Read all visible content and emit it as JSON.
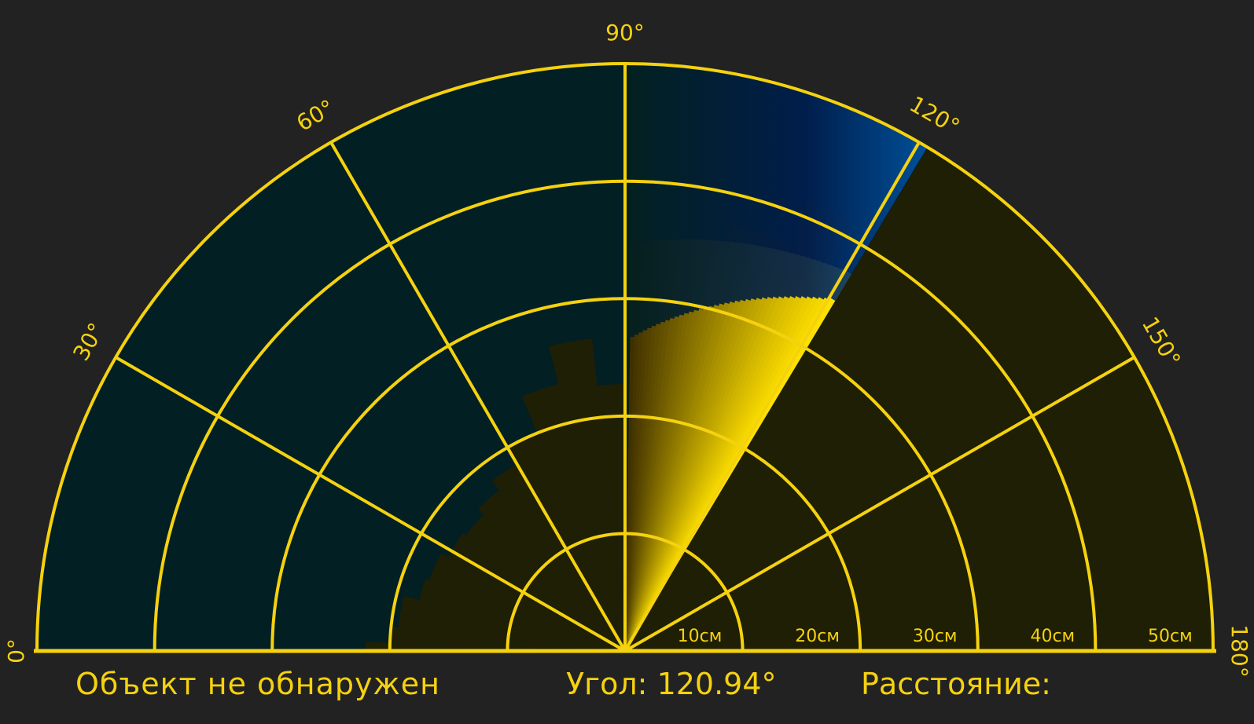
{
  "radar": {
    "angle_labels": [
      "0°",
      "30°",
      "60°",
      "90°",
      "120°",
      "150°",
      "180°"
    ],
    "distance_labels": [
      "10см",
      "20см",
      "30см",
      "40см",
      "50см"
    ],
    "sweep_angle_deg": 120.94
  },
  "status": {
    "object_text": "Объект не обнаружен",
    "angle_label": "Угол:",
    "angle_value": "120.94°",
    "distance_label": "Расстояние:"
  },
  "colors": {
    "background": "#222222",
    "grid": "#f5d20f",
    "text": "#f5d20f",
    "clear_area": "#1f1f05",
    "detected_area": "#021f24",
    "sweep_blue": "#0050a0"
  }
}
